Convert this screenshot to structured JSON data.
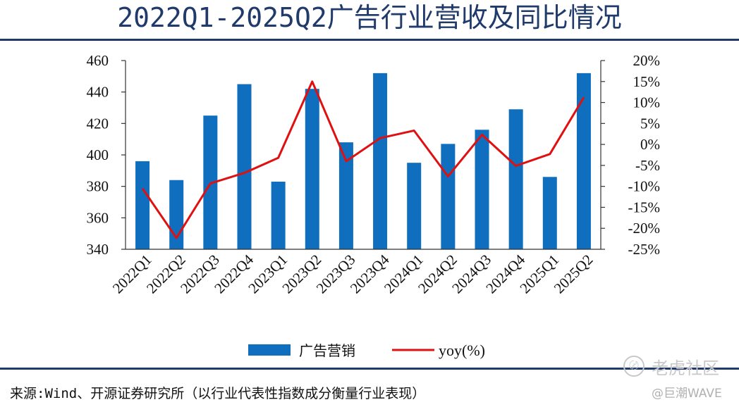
{
  "title": "2022Q1-2025Q2广告行业营收及同比情况",
  "source": "来源:Wind、开源证券研究所（以行业代表性指数成分衡量行业表现）",
  "watermark": {
    "brand": "老虎社区",
    "user": "@巨潮WAVE"
  },
  "chart_data": {
    "type": "bar+line",
    "categories": [
      "2022Q1",
      "2022Q2",
      "2022Q3",
      "2022Q4",
      "2023Q1",
      "2023Q2",
      "2023Q3",
      "2023Q4",
      "2024Q1",
      "2024Q2",
      "2024Q3",
      "2024Q4",
      "2025Q1",
      "2025Q2"
    ],
    "series": [
      {
        "name": "广告营销",
        "type": "bar",
        "axis": "left",
        "color": "#0f6fbe",
        "values": [
          396,
          384,
          425,
          445,
          383,
          442,
          408,
          452,
          395,
          407,
          416,
          429,
          386,
          452
        ]
      },
      {
        "name": "yoy(%)",
        "type": "line",
        "axis": "right",
        "color": "#e01010",
        "values": [
          -10.5,
          -22.3,
          -9.3,
          -6.8,
          -3.2,
          15.0,
          -4.0,
          1.5,
          3.3,
          -7.6,
          2.3,
          -5.1,
          -2.3,
          11.2
        ]
      }
    ],
    "y_left": {
      "min": 340,
      "max": 460,
      "ticks": [
        340,
        360,
        380,
        400,
        420,
        440,
        460
      ]
    },
    "y_right": {
      "min": -25,
      "max": 20,
      "ticks": [
        -25,
        -20,
        -15,
        -10,
        -5,
        0,
        5,
        10,
        15,
        20
      ],
      "tick_labels": [
        "-25%",
        "-20%",
        "-15%",
        "-10%",
        "-5%",
        "0%",
        "5%",
        "10%",
        "15%",
        "20%"
      ]
    },
    "legend_position": "bottom",
    "grid": false
  }
}
